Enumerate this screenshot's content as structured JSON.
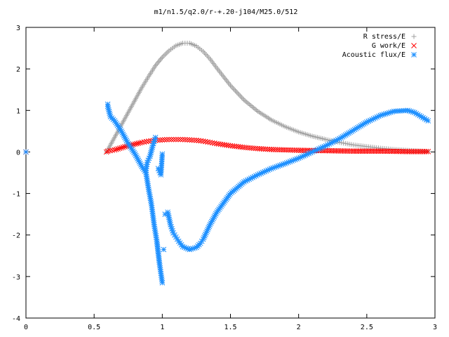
{
  "chart_data": {
    "type": "scatter",
    "title": "m1/n1.5/q2.0/r-+.20-j104/M25.0/512",
    "xlabel": "",
    "ylabel": "",
    "xlim": [
      0,
      3
    ],
    "ylim": [
      -4,
      3
    ],
    "xticks": [
      0,
      0.5,
      1,
      1.5,
      2,
      2.5,
      3
    ],
    "xtick_labels": [
      "0",
      "0.5",
      "1",
      "1.5",
      "2",
      "2.5",
      "3"
    ],
    "yticks": [
      -4,
      -3,
      -2,
      -1,
      0,
      1,
      2,
      3
    ],
    "ytick_labels": [
      "-4",
      "-3",
      "-2",
      "-1",
      "0",
      "1",
      "2",
      "3"
    ],
    "grid": false,
    "legend_position": "top-right",
    "series": [
      {
        "name": "R stress/E",
        "marker": "plus",
        "color": "#a0a0a0",
        "x": [
          0.0,
          0.59,
          0.6,
          0.65,
          0.7,
          0.75,
          0.8,
          0.85,
          0.9,
          0.95,
          1.0,
          1.05,
          1.1,
          1.15,
          1.2,
          1.25,
          1.3,
          1.35,
          1.4,
          1.5,
          1.6,
          1.7,
          1.8,
          1.9,
          2.0,
          2.1,
          2.2,
          2.3,
          2.4,
          2.5,
          2.6,
          2.7,
          2.8,
          2.95
        ],
        "y": [
          0.0,
          0.0,
          0.05,
          0.35,
          0.65,
          0.95,
          1.25,
          1.55,
          1.82,
          2.08,
          2.28,
          2.44,
          2.56,
          2.62,
          2.62,
          2.55,
          2.42,
          2.24,
          2.02,
          1.6,
          1.25,
          0.98,
          0.77,
          0.61,
          0.48,
          0.38,
          0.3,
          0.23,
          0.17,
          0.13,
          0.09,
          0.06,
          0.04,
          0.01
        ]
      },
      {
        "name": "G work/E",
        "marker": "cross",
        "color": "#ff0000",
        "x": [
          0.0,
          0.59,
          0.6,
          0.65,
          0.7,
          0.75,
          0.8,
          0.85,
          0.9,
          0.95,
          1.0,
          1.05,
          1.1,
          1.15,
          1.2,
          1.25,
          1.3,
          1.35,
          1.4,
          1.5,
          1.6,
          1.7,
          1.8,
          1.9,
          2.0,
          2.2,
          2.4,
          2.6,
          2.8,
          2.95
        ],
        "y": [
          0.0,
          0.0,
          0.02,
          0.05,
          0.1,
          0.15,
          0.19,
          0.23,
          0.26,
          0.28,
          0.29,
          0.3,
          0.3,
          0.3,
          0.29,
          0.28,
          0.26,
          0.23,
          0.2,
          0.15,
          0.11,
          0.08,
          0.06,
          0.05,
          0.04,
          0.03,
          0.02,
          0.02,
          0.01,
          0.01
        ]
      },
      {
        "name": "Acoustic flux/E",
        "marker": "star",
        "color": "#1e90ff",
        "x": [
          0.0,
          0.6,
          0.6,
          0.62,
          0.65,
          0.7,
          0.75,
          0.8,
          0.85,
          0.88,
          0.9,
          0.92,
          0.94,
          0.96,
          0.98,
          1.0,
          1.01,
          0.88,
          0.89,
          0.91,
          0.93,
          0.95,
          0.97,
          0.99,
          1.0,
          1.02,
          1.04,
          1.06,
          1.08,
          1.1,
          1.12,
          1.15,
          1.2,
          1.25,
          1.28,
          1.3,
          1.35,
          1.4,
          1.5,
          1.6,
          1.7,
          1.8,
          1.9,
          2.0,
          2.1,
          2.2,
          2.3,
          2.4,
          2.5,
          2.6,
          2.7,
          2.8,
          2.85,
          2.9,
          2.95
        ],
        "y": [
          0.0,
          1.15,
          1.1,
          0.85,
          0.75,
          0.5,
          0.2,
          -0.05,
          -0.35,
          -0.5,
          -0.9,
          -1.25,
          -1.75,
          -2.15,
          -2.7,
          -3.15,
          -2.35,
          -0.45,
          -0.25,
          -0.1,
          0.15,
          0.35,
          -0.4,
          -0.55,
          -0.05,
          -1.5,
          -1.45,
          -1.75,
          -1.95,
          -2.05,
          -2.15,
          -2.28,
          -2.35,
          -2.3,
          -2.2,
          -2.1,
          -1.75,
          -1.45,
          -1.0,
          -0.72,
          -0.55,
          -0.4,
          -0.28,
          -0.15,
          0.0,
          0.15,
          0.32,
          0.52,
          0.72,
          0.88,
          0.98,
          1.0,
          0.95,
          0.85,
          0.75
        ]
      }
    ]
  }
}
